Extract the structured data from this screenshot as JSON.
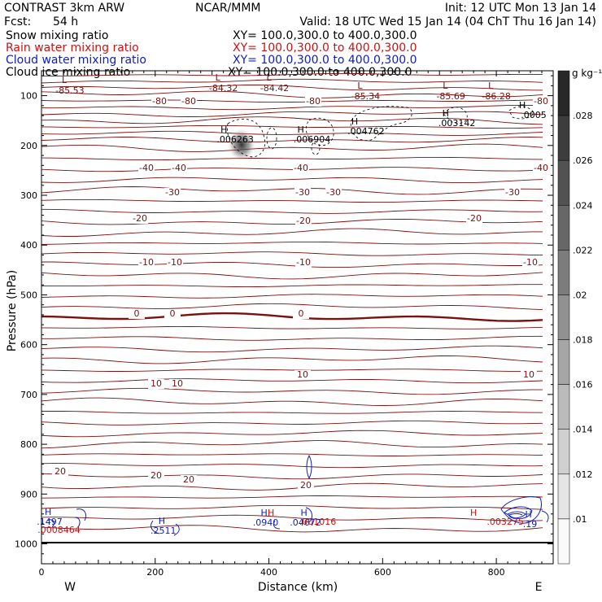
{
  "header": {
    "title": "CONTRAST  3km ARW",
    "fcst_label": "Fcst:",
    "fcst_value": "54 h",
    "center": "NCAR/MMM",
    "init": "Init: 12 UTC Mon 13 Jan 14",
    "valid": "Valid: 18 UTC Wed 15 Jan 14 (04 ChT Thu 16 Jan 14)"
  },
  "fields": [
    {
      "name": "Snow mixing ratio",
      "xy": "XY= 100.0,300.0 to 400.0,300.0",
      "color": "#000000"
    },
    {
      "name": "Rain water mixing ratio",
      "xy": "XY= 100.0,300.0 to 400.0,300.0",
      "color": "#d01010"
    },
    {
      "name": "Cloud water mixing ratio",
      "xy": "XY= 100.0,300.0 to 400.0,300.0",
      "color": "#1020c0"
    },
    {
      "name": "Cloud ice mixing ratio",
      "xy": "XY= 100.0,300.0 to 400.0,300.0",
      "color": "#000000"
    }
  ],
  "chart_data": {
    "type": "contour",
    "xlabel": "Distance (km)",
    "ylabel": "Pressure (hPa)",
    "xlim": [
      0,
      900
    ],
    "ylim": [
      1040,
      50
    ],
    "x_ticks": [
      "0",
      "200",
      "400",
      "600",
      "800"
    ],
    "y_ticks": [
      "100",
      "200",
      "300",
      "400",
      "500",
      "600",
      "700",
      "800",
      "900",
      "1000"
    ],
    "x_end_labels": {
      "west": "W",
      "east": "E"
    },
    "colorbar": {
      "unit": "g kg⁻¹",
      "levels": [
        ".028",
        ".026",
        ".024",
        ".022",
        ".02",
        ".018",
        ".016",
        ".014",
        ".012",
        ".01"
      ]
    },
    "contour_labels": {
      "temperature": [
        "-80",
        "-80",
        "-80",
        "-80",
        "-40",
        "-40",
        "-40",
        "-40",
        "-30",
        "-30",
        "-30",
        "-30",
        "-20",
        "-20",
        "-20",
        "-10",
        "-10",
        "-10",
        "-10",
        "0",
        "0",
        "0",
        "10",
        "10",
        "10",
        "10",
        "20",
        "20",
        "20",
        "20"
      ],
      "lows": [
        {
          "x": 50,
          "v": "-85.53"
        },
        {
          "x": 320,
          "v": "-84.32"
        },
        {
          "x": 410,
          "v": "-84.42"
        },
        {
          "x": 570,
          "v": "-85.34"
        },
        {
          "x": 720,
          "v": "-85.69"
        },
        {
          "x": 800,
          "v": "-86.28"
        }
      ],
      "snow_highs": [
        {
          "x": 355,
          "v": ".006263"
        },
        {
          "x": 490,
          "v": ".006904"
        },
        {
          "x": 585,
          "v": ".004762"
        },
        {
          "x": 745,
          "v": ".003142"
        },
        {
          "x": 880,
          "v": ".0005"
        }
      ],
      "cloud_water_highs": [
        {
          "x": 20,
          "v": ".1497"
        },
        {
          "x": 220,
          "v": ".2511"
        },
        {
          "x": 400,
          "v": ".0940"
        },
        {
          "x": 470,
          "v": ".04672"
        },
        {
          "x": 865,
          "v": ".19"
        }
      ],
      "rain_highs": [
        {
          "x": 5,
          "v": ".0008464"
        },
        {
          "x": 460,
          "v": ".001016"
        },
        {
          "x": 790,
          "v": ".003275"
        }
      ]
    }
  }
}
